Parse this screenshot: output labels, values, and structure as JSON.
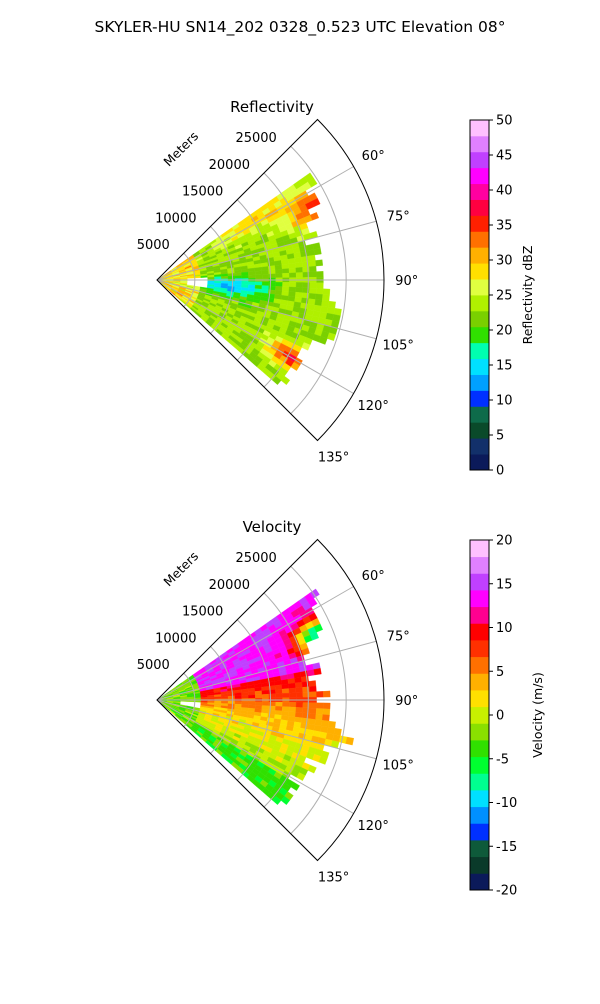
{
  "figure_title": "SKYLER-HU  SN14_202  0328_0.523 UTC Elevation 08°",
  "colors": {
    "reflectivity_scale": [
      "#0b1a5a",
      "#12306a",
      "#0a4a2a",
      "#0e6b4a",
      "#0030ff",
      "#00a0ff",
      "#00e0ff",
      "#00ffb0",
      "#30e000",
      "#7ad000",
      "#b0f000",
      "#e0ff40",
      "#ffe000",
      "#ffb000",
      "#ff7000",
      "#ff2000",
      "#ff0040",
      "#ff00a0",
      "#ff00ff",
      "#c040ff",
      "#e080ff",
      "#ffc0ff"
    ],
    "velocity_scale": [
      "#0b1a5a",
      "#0a3a2a",
      "#0e5a3a",
      "#0030ff",
      "#0090ff",
      "#00e0ff",
      "#00ff90",
      "#00ff30",
      "#30e000",
      "#8ae000",
      "#c8f000",
      "#ffe000",
      "#ffb000",
      "#ff7000",
      "#ff3000",
      "#ff0000",
      "#ff0090",
      "#ff00ff",
      "#c040ff",
      "#e080ff",
      "#ffc0ff"
    ]
  },
  "chart_data": [
    {
      "type": "polar_sector",
      "title": "Reflectivity",
      "radial_label": "Meters",
      "radial_ticks": [
        5000,
        10000,
        15000,
        20000,
        25000
      ],
      "radial_tick_labels": [
        "5000",
        "10000",
        "15000",
        "20000",
        "25000"
      ],
      "rmax": 30000,
      "theta_ticks": [
        60,
        75,
        90,
        105,
        120,
        135
      ],
      "theta_tick_labels": [
        "60°",
        "75°",
        "90°",
        "105°",
        "120°",
        "135°"
      ],
      "theta_range": [
        45,
        135
      ],
      "colorbar": {
        "label": "Reflectivity dBZ",
        "range": [
          0,
          50
        ],
        "ticks": [
          "0",
          "5",
          "10",
          "15",
          "20",
          "25",
          "30",
          "35",
          "40",
          "45",
          "50"
        ]
      },
      "field": {
        "summary": "Echoes mostly 18-28 dBZ across the sector; weaker 10-15 dBZ near azimuth 95 at 5-15 km; stronger 30-38 dBZ cores near azimuth 65 at 20-25 km and azimuth 120 at 20 km",
        "range_extent_m": [
          0,
          26000
        ],
        "azimuth_extent_deg": [
          55,
          130
        ]
      }
    },
    {
      "type": "polar_sector",
      "title": "Velocity",
      "radial_label": "Meters",
      "radial_ticks": [
        5000,
        10000,
        15000,
        20000,
        25000
      ],
      "radial_tick_labels": [
        "5000",
        "10000",
        "15000",
        "20000",
        "25000"
      ],
      "rmax": 30000,
      "theta_ticks": [
        60,
        75,
        90,
        105,
        120,
        135
      ],
      "theta_tick_labels": [
        "60°",
        "75°",
        "90°",
        "105°",
        "120°",
        "135°"
      ],
      "theta_range": [
        45,
        135
      ],
      "colorbar": {
        "label": "Velocity (m/s)",
        "range": [
          -20,
          20
        ],
        "ticks": [
          "-20",
          "-15",
          "-10",
          "-5",
          "0",
          "5",
          "10",
          "15",
          "20"
        ]
      },
      "field": {
        "summary": "Outbound 12-17 m/s at azimuth 60-80; inbound -10 to -12 m/s patch near azimuth 68 at 20-25 km; 8-12 m/s near azimuth 85-100; 0-5 m/s near azimuth 105-120; -3 to -6 m/s along azimuth 125-130",
        "range_extent_m": [
          0,
          26000
        ],
        "azimuth_extent_deg": [
          55,
          130
        ]
      }
    }
  ]
}
